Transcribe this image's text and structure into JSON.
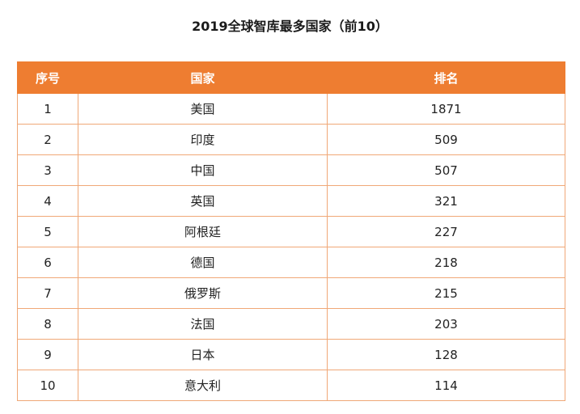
{
  "title": "2019全球智库最多国家（前10）",
  "colors": {
    "header_bg": "#ee7d31",
    "header_text": "#ffffff",
    "border": "#f0a877"
  },
  "table": {
    "headers": [
      "序号",
      "国家",
      "排名"
    ],
    "rows": [
      {
        "index": "1",
        "country": "美国",
        "count": "1871"
      },
      {
        "index": "2",
        "country": "印度",
        "count": "509"
      },
      {
        "index": "3",
        "country": "中国",
        "count": "507"
      },
      {
        "index": "4",
        "country": "英国",
        "count": "321"
      },
      {
        "index": "5",
        "country": "阿根廷",
        "count": "227"
      },
      {
        "index": "6",
        "country": "德国",
        "count": "218"
      },
      {
        "index": "7",
        "country": "俄罗斯",
        "count": "215"
      },
      {
        "index": "8",
        "country": "法国",
        "count": "203"
      },
      {
        "index": "9",
        "country": "日本",
        "count": "128"
      },
      {
        "index": "10",
        "country": "意大利",
        "count": "114"
      }
    ]
  }
}
